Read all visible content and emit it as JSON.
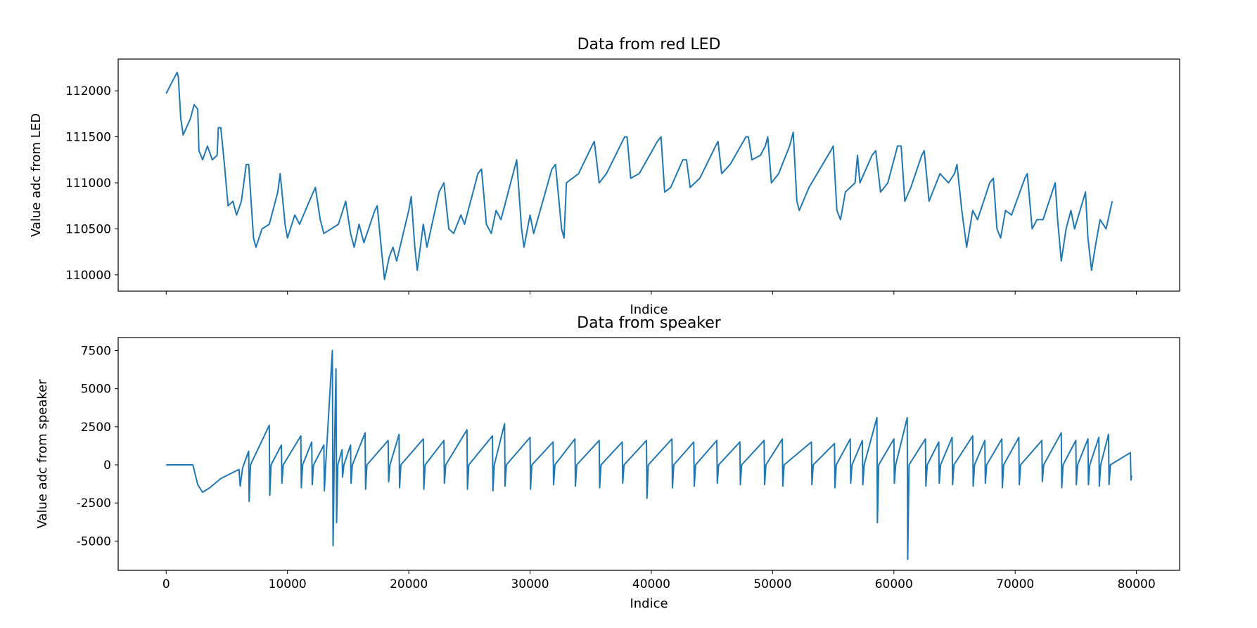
{
  "chart_data": [
    {
      "type": "line",
      "title": "Data from red LED",
      "xlabel": "Indice",
      "ylabel": "Value adc from LED",
      "color": "#1f77b4",
      "xlim": [
        -3960,
        83560
      ],
      "ylim": [
        109823,
        112345
      ],
      "xticks": [
        0,
        10000,
        20000,
        30000,
        40000,
        50000,
        60000,
        70000,
        80000
      ],
      "xtick_labels": false,
      "yticks": [
        110000,
        110500,
        111000,
        111500,
        112000
      ],
      "x": [
        0,
        500,
        900,
        1000,
        1200,
        1400,
        2000,
        2300,
        2600,
        2700,
        3000,
        3400,
        3800,
        4200,
        4300,
        4500,
        4800,
        5100,
        5500,
        5800,
        6200,
        6600,
        6800,
        7200,
        7400,
        7900,
        8500,
        9200,
        9400,
        9800,
        10000,
        10600,
        11000,
        11800,
        12300,
        12700,
        13000,
        13600,
        14200,
        14800,
        15200,
        15500,
        15900,
        16300,
        17200,
        17400,
        17800,
        18000,
        18400,
        18700,
        19000,
        20000,
        20200,
        20500,
        20700,
        21200,
        21500,
        22500,
        22900,
        23300,
        23700,
        24300,
        24600,
        25700,
        26000,
        26400,
        26800,
        27200,
        27600,
        28800,
        28900,
        29300,
        29500,
        30000,
        30300,
        31800,
        32100,
        32600,
        32800,
        33000,
        34000,
        35100,
        35300,
        35700,
        36300,
        37800,
        38000,
        38300,
        39000,
        40500,
        40800,
        41100,
        41600,
        42600,
        42900,
        43200,
        44000,
        45300,
        45500,
        45800,
        46500,
        47800,
        48000,
        48300,
        49000,
        49400,
        49600,
        49900,
        50500,
        51400,
        51700,
        52000,
        52200,
        53000,
        54800,
        55000,
        55300,
        55600,
        56000,
        56800,
        57000,
        57200,
        58200,
        58500,
        58900,
        59500,
        60300,
        60600,
        60900,
        61400,
        62300,
        62500,
        62900,
        63800,
        64500,
        65000,
        65200,
        65600,
        66000,
        66500,
        66900,
        67900,
        68200,
        68500,
        68800,
        69200,
        69700,
        70800,
        71000,
        71400,
        71800,
        72300,
        73300,
        73500,
        73800,
        74200,
        74600,
        74900,
        75800,
        76000,
        76300,
        76600,
        77000,
        77500,
        78000
      ],
      "values": [
        111970,
        112100,
        112200,
        112150,
        111700,
        111520,
        111700,
        111850,
        111800,
        111350,
        111250,
        111400,
        111250,
        111300,
        111600,
        111600,
        111200,
        110750,
        110800,
        110650,
        110800,
        111200,
        111200,
        110400,
        110300,
        110500,
        110550,
        110900,
        111100,
        110550,
        110400,
        110650,
        110550,
        110800,
        110950,
        110600,
        110450,
        110500,
        110550,
        110800,
        110450,
        110300,
        110550,
        110350,
        110700,
        110750,
        110200,
        109950,
        110200,
        110300,
        110150,
        110700,
        110850,
        110300,
        110050,
        110550,
        110300,
        110900,
        111000,
        110500,
        110450,
        110650,
        110550,
        111100,
        111150,
        110550,
        110450,
        110700,
        110600,
        111200,
        111250,
        110500,
        110300,
        110650,
        110450,
        111150,
        111200,
        110500,
        110400,
        111000,
        111100,
        111400,
        111450,
        111000,
        111100,
        111500,
        111500,
        111050,
        111100,
        111450,
        111500,
        110900,
        110950,
        111250,
        111250,
        110950,
        111050,
        111400,
        111450,
        111100,
        111200,
        111500,
        111500,
        111250,
        111300,
        111400,
        111500,
        111000,
        111100,
        111400,
        111550,
        110800,
        110700,
        110950,
        111350,
        111400,
        110700,
        110600,
        110900,
        111000,
        111300,
        111000,
        111300,
        111350,
        110900,
        111000,
        111400,
        111400,
        110800,
        110950,
        111300,
        111350,
        110800,
        111100,
        111000,
        111100,
        111200,
        110700,
        110300,
        110700,
        110600,
        111000,
        111050,
        110500,
        110400,
        110700,
        110650,
        111050,
        111100,
        110500,
        110600,
        110600,
        111000,
        110600,
        110150,
        110500,
        110700,
        110500,
        110900,
        110400,
        110050,
        110300,
        110600,
        110500,
        110800
      ]
    },
    {
      "type": "line",
      "title": "Data from speaker",
      "xlabel": "Indice",
      "ylabel": "Value adc from speaker",
      "color": "#1f77b4",
      "xlim": [
        -3960,
        83560
      ],
      "ylim": [
        -6923,
        8355
      ],
      "xticks": [
        0,
        10000,
        20000,
        30000,
        40000,
        50000,
        60000,
        70000,
        80000
      ],
      "xtick_labels": true,
      "yticks": [
        -5000,
        -2500,
        0,
        2500,
        5000,
        7500
      ],
      "x": [
        0,
        2200,
        2600,
        3000,
        3600,
        4500,
        6000,
        6100,
        6300,
        6800,
        6840,
        6950,
        8500,
        8540,
        8650,
        9500,
        9540,
        9650,
        11100,
        11140,
        11250,
        12000,
        12040,
        12150,
        13000,
        13040,
        13150,
        13700,
        13760,
        13850,
        14000,
        14050,
        14150,
        14500,
        14540,
        14650,
        15200,
        15240,
        15350,
        16400,
        16440,
        16550,
        18300,
        18340,
        18450,
        19200,
        19240,
        19350,
        21200,
        21240,
        21350,
        22900,
        22940,
        23050,
        24800,
        24840,
        24950,
        26900,
        26940,
        27050,
        27900,
        27940,
        28050,
        30000,
        30040,
        30150,
        31900,
        31940,
        32050,
        33700,
        33740,
        33850,
        35700,
        35740,
        35850,
        37600,
        37640,
        37750,
        39600,
        39640,
        39750,
        41700,
        41740,
        41850,
        43500,
        43540,
        43650,
        45400,
        45440,
        45550,
        47300,
        47340,
        47450,
        49300,
        49340,
        49450,
        50800,
        50840,
        50950,
        53200,
        53240,
        53350,
        55100,
        55140,
        55250,
        56400,
        56440,
        56550,
        57400,
        57440,
        57550,
        58600,
        58640,
        58750,
        60000,
        60040,
        60150,
        61100,
        61140,
        61250,
        62600,
        62640,
        62750,
        63700,
        63740,
        63850,
        64800,
        64840,
        64950,
        66500,
        66540,
        66650,
        67500,
        67540,
        67650,
        68900,
        68940,
        69050,
        70300,
        70340,
        70450,
        72200,
        72240,
        72350,
        73800,
        73840,
        73950,
        75000,
        75040,
        75150,
        76000,
        76040,
        76150,
        76900,
        76940,
        77050,
        77700,
        77740,
        77850,
        79500,
        79550,
        79600
      ],
      "values": [
        0,
        0,
        -1300,
        -1800,
        -1500,
        -900,
        -300,
        -1400,
        -200,
        900,
        -2400,
        0,
        2600,
        -2000,
        0,
        1300,
        -1200,
        0,
        1900,
        -1500,
        0,
        1500,
        -1300,
        0,
        1300,
        -1700,
        0,
        7500,
        -5300,
        0,
        6300,
        -3800,
        0,
        1000,
        -800,
        0,
        1300,
        -1200,
        0,
        2100,
        -1600,
        0,
        1600,
        -1100,
        0,
        2000,
        -1500,
        0,
        1700,
        -1600,
        0,
        1600,
        -1200,
        0,
        2300,
        -1600,
        0,
        1900,
        -1700,
        0,
        2700,
        -1400,
        0,
        1800,
        -1600,
        0,
        1500,
        -1300,
        0,
        1700,
        -1400,
        0,
        1600,
        -1500,
        0,
        1500,
        -1200,
        0,
        1600,
        -2200,
        0,
        1700,
        -1500,
        0,
        1500,
        -1400,
        0,
        1600,
        -1200,
        0,
        1500,
        -1300,
        0,
        1600,
        -1300,
        0,
        1700,
        -1400,
        0,
        1500,
        -1300,
        0,
        1400,
        -1500,
        0,
        1700,
        -1200,
        0,
        1600,
        -1300,
        0,
        3100,
        -3800,
        0,
        1700,
        -1200,
        0,
        3100,
        -6200,
        0,
        1700,
        -1400,
        0,
        1500,
        -1200,
        0,
        1800,
        -1300,
        0,
        1900,
        -1400,
        0,
        1600,
        -1200,
        0,
        1700,
        -1500,
        0,
        1800,
        -1300,
        0,
        1600,
        -1100,
        0,
        2100,
        -1500,
        0,
        1600,
        -1300,
        0,
        1700,
        -1300,
        0,
        1800,
        -1400,
        0,
        2000,
        -1300,
        0,
        800,
        -1000,
        -700
      ]
    }
  ]
}
